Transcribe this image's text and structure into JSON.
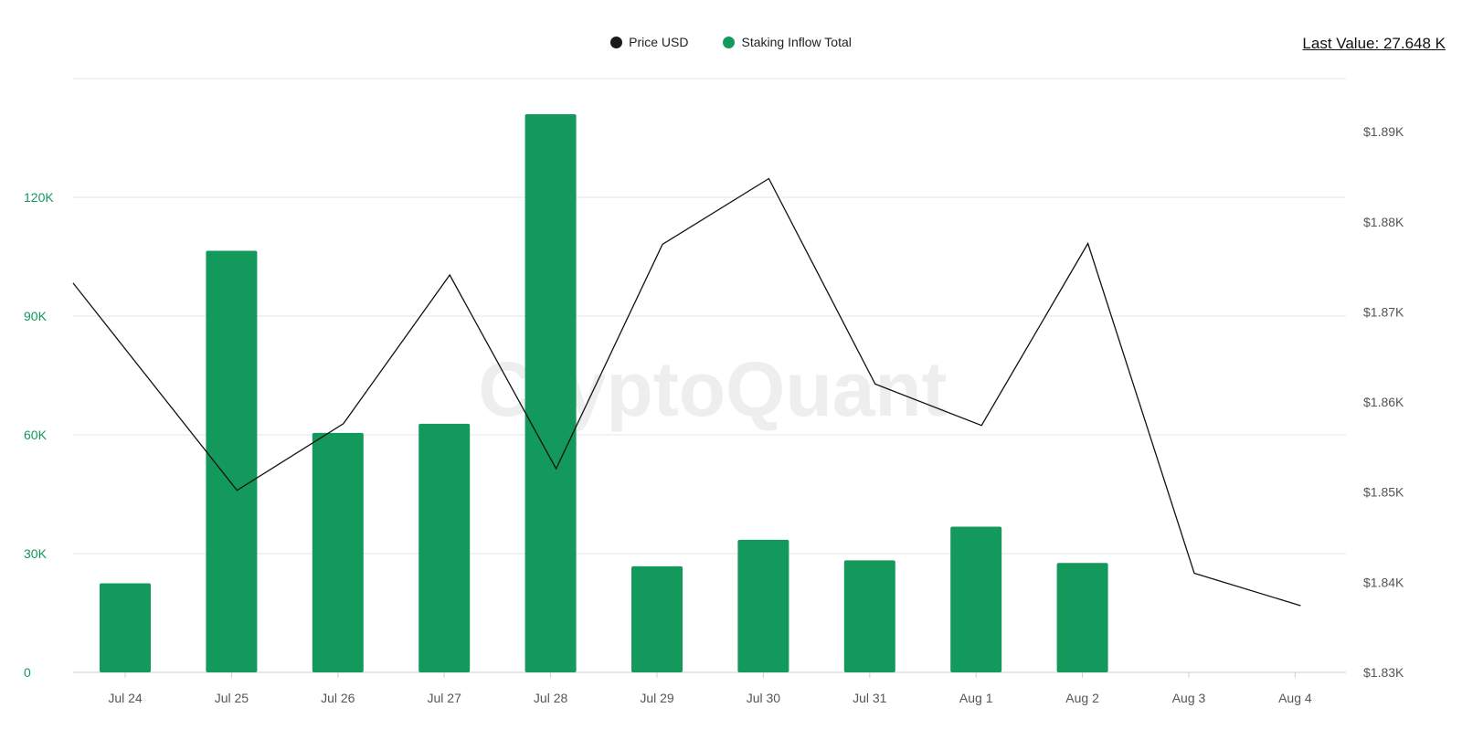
{
  "last_value": "Last Value: 27.648 K",
  "legend": [
    {
      "label": "Price USD",
      "color": "#1a1a1a"
    },
    {
      "label": "Staking Inflow Total",
      "color": "#13995c"
    }
  ],
  "watermark": "CryptoQuant",
  "colors": {
    "bar": "#13995c",
    "line": "#111111",
    "left_axis": "#13995c",
    "right_axis": "#555555",
    "grid": "#e6e6e6"
  },
  "chart_data": {
    "type": "bar",
    "title": "",
    "categories": [
      "Jul 24",
      "Jul 25",
      "Jul 26",
      "Jul 27",
      "Jul 28",
      "Jul 29",
      "Jul 30",
      "Jul 31",
      "Aug 1",
      "Aug 2",
      "Aug 3",
      "Aug 4"
    ],
    "series": [
      {
        "name": "Staking Inflow Total",
        "type": "bar",
        "axis": "left",
        "values": [
          22500,
          106500,
          60500,
          62800,
          141000,
          26800,
          33500,
          28300,
          36800,
          27648,
          null,
          null
        ]
      },
      {
        "name": "Price USD",
        "type": "line",
        "axis": "right",
        "values": [
          null,
          1850.2,
          1857.6,
          1874.1,
          1852.6,
          1877.5,
          1884.8,
          1862.0,
          1857.4,
          1877.6,
          1841.0,
          1837.4
        ]
      }
    ],
    "price_line_start": 1873.2,
    "left_axis": {
      "ticks": [
        0,
        30000,
        60000,
        90000,
        120000
      ],
      "labels": [
        "0",
        "30K",
        "60K",
        "90K",
        "120K"
      ],
      "range": [
        0,
        150000
      ]
    },
    "right_axis": {
      "ticks": [
        1830,
        1840,
        1850,
        1860,
        1870,
        1880,
        1890
      ],
      "labels": [
        "$1.83K",
        "$1.84K",
        "$1.85K",
        "$1.86K",
        "$1.87K",
        "$1.88K",
        "$1.89K"
      ],
      "range": [
        1830,
        1895.9
      ]
    },
    "grid": true,
    "legend_position": "top-center"
  }
}
